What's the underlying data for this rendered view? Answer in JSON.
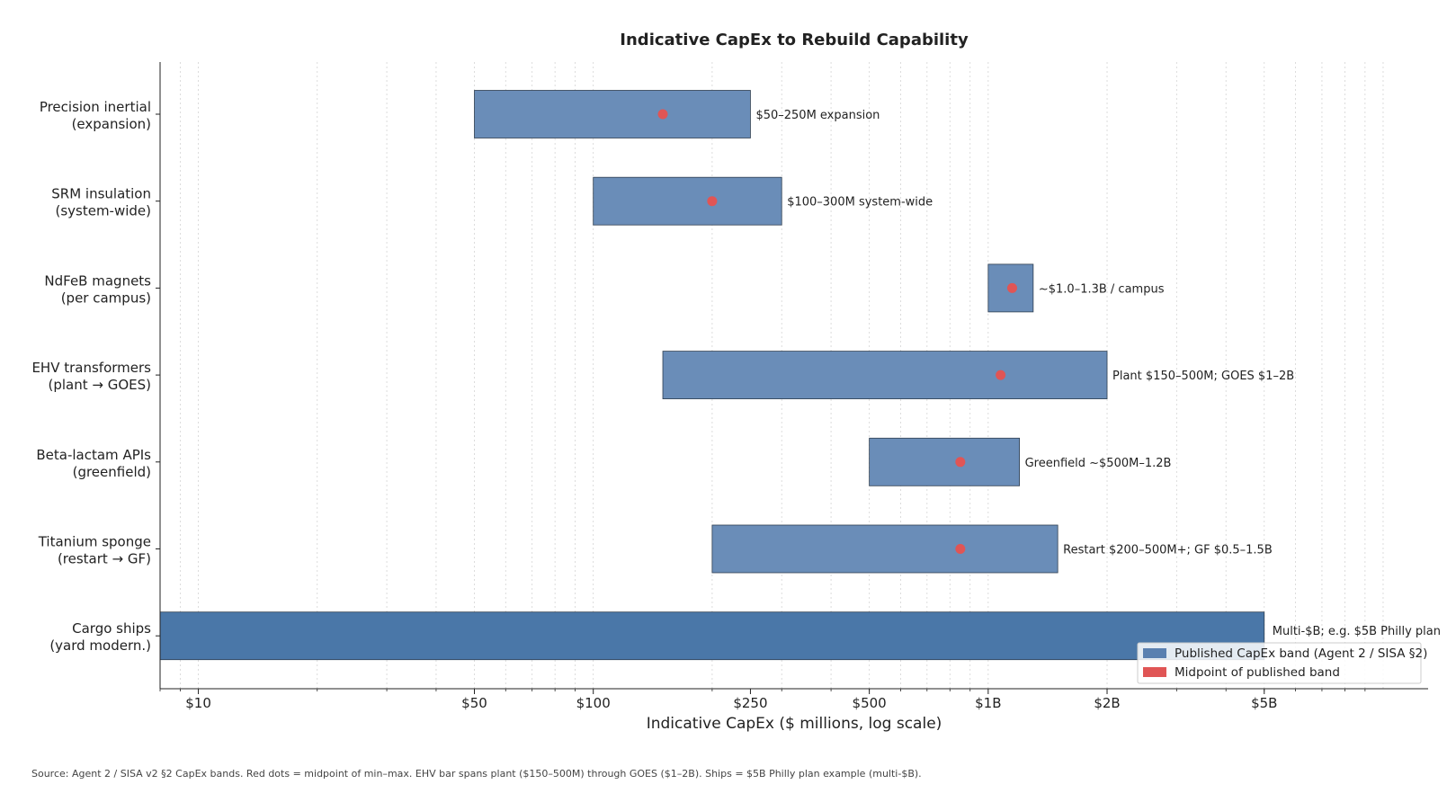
{
  "chart_data": {
    "type": "bar",
    "orientation": "horizontal",
    "title": "Indicative CapEx to Rebuild Capability",
    "xlabel": "Indicative CapEx ($ millions, log scale)",
    "ylabel": "",
    "x_scale": "log",
    "xlim": [
      8,
      13000
    ],
    "x_ticks": [
      {
        "value": 10,
        "label": "$10"
      },
      {
        "value": 50,
        "label": "$50"
      },
      {
        "value": 100,
        "label": "$100"
      },
      {
        "value": 250,
        "label": "$250"
      },
      {
        "value": 500,
        "label": "$500"
      },
      {
        "value": 1000,
        "label": "$1B"
      },
      {
        "value": 2000,
        "label": "$2B"
      },
      {
        "value": 5000,
        "label": "$5B"
      }
    ],
    "grid": "vertical dotted, major and minor",
    "categories": [
      {
        "label_line1": "Precision inertial",
        "label_line2": "(expansion)",
        "min": 50,
        "max": 250,
        "midpoint": 150,
        "annotation": "$50–250M expansion"
      },
      {
        "label_line1": "SRM insulation",
        "label_line2": "(system-wide)",
        "min": 100,
        "max": 300,
        "midpoint": 200,
        "annotation": "$100–300M system-wide"
      },
      {
        "label_line1": "NdFeB magnets",
        "label_line2": "(per campus)",
        "min": 1000,
        "max": 1300,
        "midpoint": 1150,
        "annotation": "~$1.0–1.3B / campus"
      },
      {
        "label_line1": "EHV transformers",
        "label_line2": "(plant → GOES)",
        "min": 150,
        "max": 2000,
        "midpoint": 1075,
        "annotation": "Plant $150–500M; GOES $1–2B"
      },
      {
        "label_line1": "Beta-lactam APIs",
        "label_line2": "(greenfield)",
        "min": 500,
        "max": 1200,
        "midpoint": 850,
        "annotation": "Greenfield ~$500M–1.2B"
      },
      {
        "label_line1": "Titanium sponge",
        "label_line2": "(restart → GF)",
        "min": 200,
        "max": 1500,
        "midpoint": 850,
        "annotation": "Restart $200–500M+; GF $0.5–1.5B"
      },
      {
        "label_line1": "Cargo ships",
        "label_line2": "(yard modern.)",
        "min": 8,
        "max": 5000,
        "midpoint": null,
        "annotation": "Multi-$B; e.g. $5B Philly plan"
      }
    ],
    "legend": {
      "placement": "bottom-right",
      "entries": [
        {
          "label": "Published CapEx band (Agent 2 / SISA §2)",
          "color": "#5a80b0"
        },
        {
          "label": "Midpoint of published band",
          "color": "#e05555"
        }
      ]
    },
    "colors": {
      "bar": "#6a8db8",
      "bar_dark": "#4a77a8",
      "bar_edge": "#2f3e4f",
      "midpoint": "#e05555"
    },
    "source_note": "Source: Agent 2 / SISA v2 §2 CapEx bands. Red dots = midpoint of min–max. EHV bar spans plant ($150–500M) through GOES ($1–2B). Ships = $5B Philly plan example (multi-$B)."
  }
}
